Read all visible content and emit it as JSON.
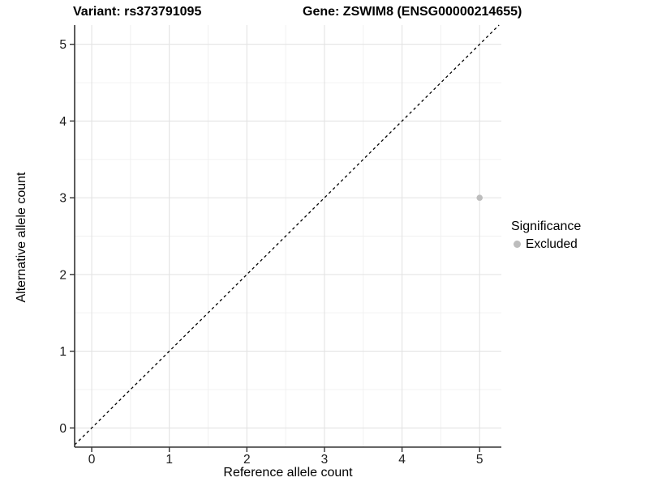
{
  "chart_data": {
    "type": "scatter",
    "title_left": "Variant: rs373791095",
    "title_right": "Gene: ZSWIM8 (ENSG00000214655)",
    "xlabel": "Reference allele count",
    "ylabel": "Alternative allele count",
    "xlim": [
      -0.22,
      5.28
    ],
    "ylim": [
      -0.25,
      5.25
    ],
    "x_ticks": [
      0,
      1,
      2,
      3,
      4,
      5
    ],
    "y_ticks": [
      0,
      1,
      2,
      3,
      4,
      5
    ],
    "x_minor_ticks": [
      0.5,
      1.5,
      2.5,
      3.5,
      4.5
    ],
    "y_minor_ticks": [
      0.5,
      1.5,
      2.5,
      3.5,
      4.5
    ],
    "grid": "major+minor",
    "series": [
      {
        "name": "Excluded",
        "color": "#bdbdbd",
        "point_radius": 3.8,
        "points": [
          {
            "x": 5,
            "y": 3
          }
        ]
      }
    ],
    "reference_line": {
      "equation": "y = x",
      "style": "dashed",
      "color": "#000000"
    },
    "legend": {
      "title": "Significance",
      "position": "right",
      "entries": [
        {
          "label": "Excluded",
          "color": "#bdbdbd"
        }
      ]
    },
    "colors": {
      "panel_background": "#ffffff",
      "grid_major": "#e3e3e3",
      "grid_minor": "#f0f0f0",
      "axis_line": "#333333",
      "tick_text": "#1a1a1a"
    }
  }
}
